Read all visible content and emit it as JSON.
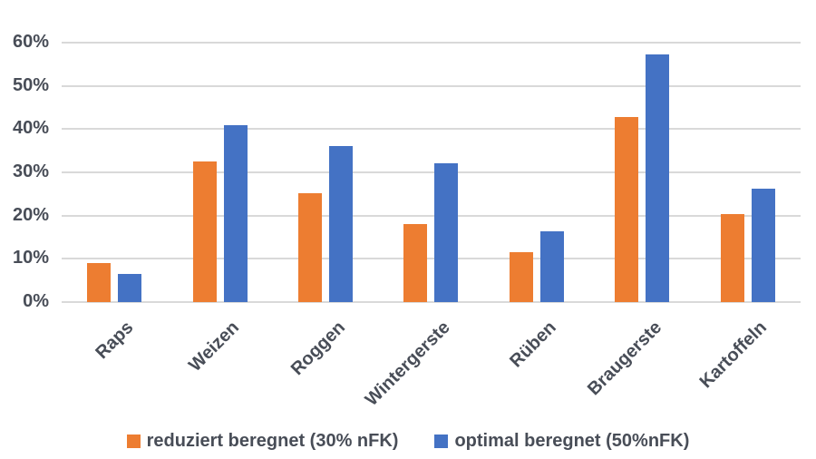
{
  "chart_data": {
    "type": "bar",
    "title": "",
    "xlabel": "",
    "ylabel": "",
    "categories": [
      "Raps",
      "Weizen",
      "Roggen",
      "Wintergerste",
      "Rüben",
      "Braugerste",
      "Kartoffeln"
    ],
    "series": [
      {
        "name": "reduziert beregnet (30% nFK)",
        "color": "#ED7D31",
        "values": [
          9.0,
          32.6,
          25.2,
          18.1,
          11.5,
          42.8,
          20.3
        ]
      },
      {
        "name": "optimal beregnet (50%nFK)",
        "color": "#4472C4",
        "values": [
          6.5,
          40.9,
          36.1,
          32.0,
          16.4,
          57.2,
          26.3
        ]
      }
    ],
    "y_ticks": [
      "60%",
      "50%",
      "40%",
      "30%",
      "20%",
      "10%",
      "0%"
    ],
    "ylim": [
      0,
      60
    ],
    "grid": true,
    "legend_position": "bottom"
  },
  "colors": {
    "background": "#FFFFFF",
    "gridline": "#D9D9D9",
    "axis_text": "#484D57",
    "series_orange": "#ED7D31",
    "series_blue": "#4472C4"
  }
}
